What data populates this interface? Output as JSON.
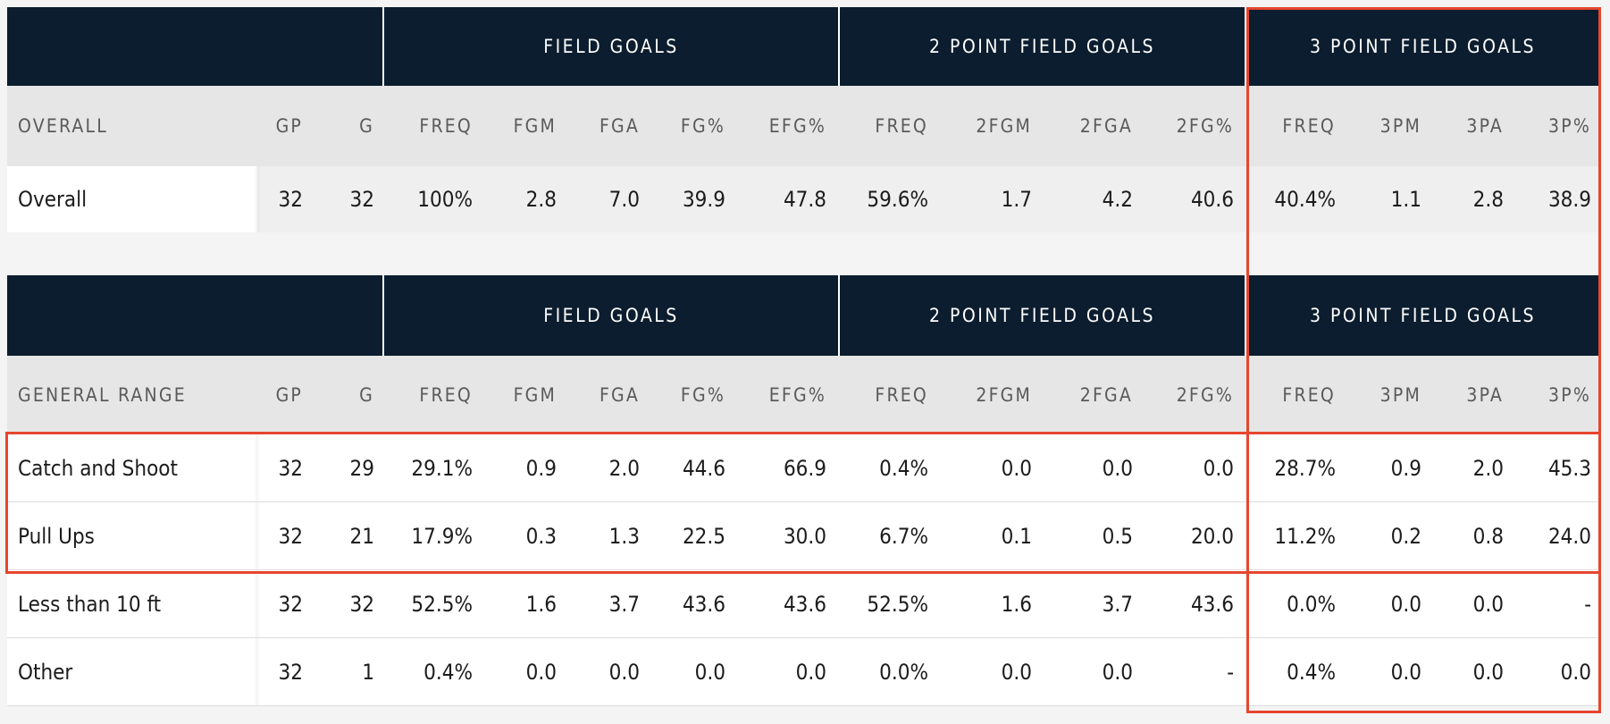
{
  "colors": {
    "header_bg": "#0b1d2e",
    "subheader_bg": "#e7e6e6",
    "highlight": "#e5462f"
  },
  "groups": [
    "FIELD GOALS",
    "2 POINT FIELD GOALS",
    "3 POINT FIELD GOALS"
  ],
  "columns": [
    "GP",
    "G",
    "FREQ",
    "FGM",
    "FGA",
    "FG%",
    "EFG%",
    "FREQ",
    "2FGM",
    "2FGA",
    "2FG%",
    "FREQ",
    "3PM",
    "3PA",
    "3P%"
  ],
  "overall": {
    "title": "OVERALL",
    "rows": [
      {
        "label": "Overall",
        "values": [
          "32",
          "32",
          "100%",
          "2.8",
          "7.0",
          "39.9",
          "47.8",
          "59.6%",
          "1.7",
          "4.2",
          "40.6",
          "40.4%",
          "1.1",
          "2.8",
          "38.9"
        ]
      }
    ]
  },
  "general_range": {
    "title": "GENERAL RANGE",
    "rows": [
      {
        "label": "Catch and Shoot",
        "values": [
          "32",
          "29",
          "29.1%",
          "0.9",
          "2.0",
          "44.6",
          "66.9",
          "0.4%",
          "0.0",
          "0.0",
          "0.0",
          "28.7%",
          "0.9",
          "2.0",
          "45.3"
        ]
      },
      {
        "label": "Pull Ups",
        "values": [
          "32",
          "21",
          "17.9%",
          "0.3",
          "1.3",
          "22.5",
          "30.0",
          "6.7%",
          "0.1",
          "0.5",
          "20.0",
          "11.2%",
          "0.2",
          "0.8",
          "24.0"
        ]
      },
      {
        "label": "Less than 10 ft",
        "values": [
          "32",
          "32",
          "52.5%",
          "1.6",
          "3.7",
          "43.6",
          "43.6",
          "52.5%",
          "1.6",
          "3.7",
          "43.6",
          "0.0%",
          "0.0",
          "0.0",
          "-"
        ]
      },
      {
        "label": "Other",
        "values": [
          "32",
          "1",
          "0.4%",
          "0.0",
          "0.0",
          "0.0",
          "0.0",
          "0.0%",
          "0.0",
          "0.0",
          "-",
          "0.4%",
          "0.0",
          "0.0",
          "0.0"
        ]
      }
    ]
  }
}
